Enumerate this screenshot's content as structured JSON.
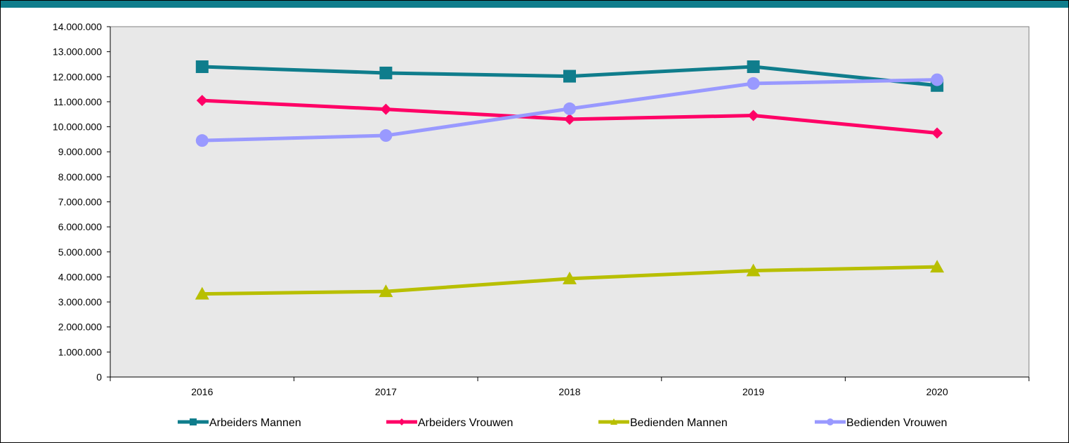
{
  "chart_data": {
    "type": "line",
    "title": "",
    "xlabel": "",
    "ylabel": "",
    "categories": [
      "2016",
      "2017",
      "2018",
      "2019",
      "2020"
    ],
    "ylim": [
      0,
      14000000
    ],
    "yticks": [
      {
        "value": 0,
        "label": "0"
      },
      {
        "value": 1000000,
        "label": "1.000.000"
      },
      {
        "value": 2000000,
        "label": "2.000.000"
      },
      {
        "value": 3000000,
        "label": "3.000.000"
      },
      {
        "value": 4000000,
        "label": "4.000.000"
      },
      {
        "value": 5000000,
        "label": "5.000.000"
      },
      {
        "value": 6000000,
        "label": "6.000.000"
      },
      {
        "value": 7000000,
        "label": "7.000.000"
      },
      {
        "value": 8000000,
        "label": "8.000.000"
      },
      {
        "value": 9000000,
        "label": "9.000.000"
      },
      {
        "value": 10000000,
        "label": "10.000.000"
      },
      {
        "value": 11000000,
        "label": "11.000.000"
      },
      {
        "value": 12000000,
        "label": "12.000.000"
      },
      {
        "value": 13000000,
        "label": "13.000.000"
      },
      {
        "value": 14000000,
        "label": "14.000.000"
      }
    ],
    "grid": false,
    "legend_position": "bottom",
    "plot_background": "#e8e8e8",
    "series": [
      {
        "name": "Arbeiders Mannen",
        "color": "#0f7d8c",
        "marker": "square",
        "values": [
          12400000,
          12150000,
          12020000,
          12400000,
          11650000
        ]
      },
      {
        "name": "Arbeiders Vrouwen",
        "color": "#ff0066",
        "marker": "diamond",
        "values": [
          11050000,
          10700000,
          10300000,
          10450000,
          9750000
        ]
      },
      {
        "name": "Bedienden Mannen",
        "color": "#b8bf00",
        "marker": "triangle",
        "values": [
          3320000,
          3420000,
          3930000,
          4250000,
          4400000
        ]
      },
      {
        "name": "Bedienden Vrouwen",
        "color": "#9999ff",
        "marker": "circle",
        "values": [
          9450000,
          9650000,
          10720000,
          11730000,
          11880000
        ]
      }
    ]
  }
}
